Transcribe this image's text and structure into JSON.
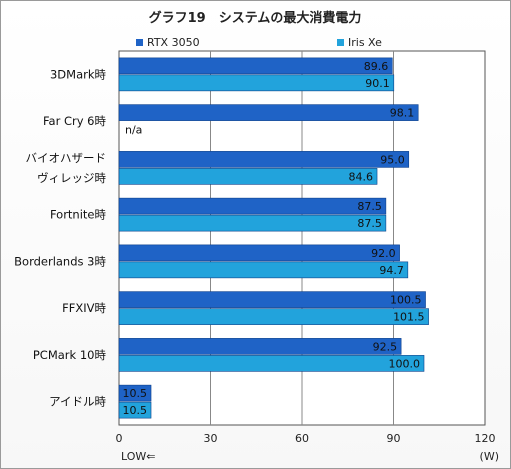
{
  "chart_data": {
    "type": "bar",
    "orientation": "horizontal",
    "title": "グラフ19　システムの最大消費電力",
    "categories": [
      [
        "3DMark時"
      ],
      [
        "Far Cry 6時"
      ],
      [
        "バイオハザード",
        "ヴィレッジ時"
      ],
      [
        "Fortnite時"
      ],
      [
        "Borderlands 3時"
      ],
      [
        "FFXIV時"
      ],
      [
        "PCMark 10時"
      ],
      [
        "アイドル時"
      ]
    ],
    "series": [
      {
        "name": "RTX 3050",
        "color": "#1f63c6",
        "values": [
          89.6,
          98.1,
          95.0,
          87.5,
          92.0,
          100.5,
          92.5,
          10.5
        ],
        "labels": [
          "89.6",
          "98.1",
          "95.0",
          "87.5",
          "92.0",
          "100.5",
          "92.5",
          "10.5"
        ]
      },
      {
        "name": "Iris Xe",
        "color": "#22a3dc",
        "values": [
          90.1,
          null,
          84.6,
          87.5,
          94.7,
          101.5,
          100.0,
          10.5
        ],
        "labels": [
          "90.1",
          "n/a",
          "84.6",
          "87.5",
          "94.7",
          "101.5",
          "100.0",
          "10.5"
        ]
      }
    ],
    "xlim": [
      0,
      120
    ],
    "xticks": [
      0,
      30,
      60,
      90,
      120
    ],
    "xticklabels": [
      "0",
      "30",
      "60",
      "90",
      "120"
    ],
    "xlabel_left": "LOW⇐",
    "xlabel_right": "(W)",
    "legend_position": "top",
    "grid": true,
    "background_color": "#ffffff"
  }
}
